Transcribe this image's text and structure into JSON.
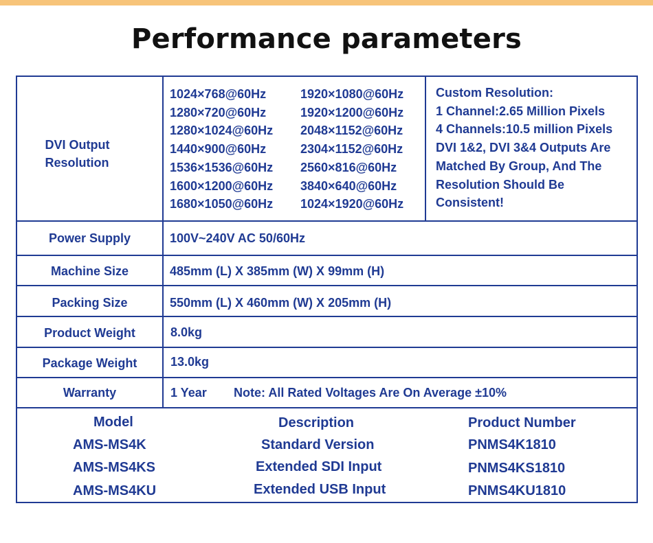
{
  "title": "Performance parameters",
  "dvi": {
    "label_line1": "DVI Output",
    "label_line2": "Resolution",
    "resolutions_col1": [
      "1024×768@60Hz",
      "1280×720@60Hz",
      "1280×1024@60Hz",
      "1440×900@60Hz",
      "1536×1536@60Hz",
      "1600×1200@60Hz",
      "1680×1050@60Hz"
    ],
    "resolutions_col2": [
      "1920×1080@60Hz",
      "1920×1200@60Hz",
      "2048×1152@60Hz",
      "2304×1152@60Hz",
      "2560×816@60Hz",
      "3840×640@60Hz",
      "1024×1920@60Hz"
    ],
    "custom_lines": [
      "Custom Resolution:",
      "1 Channel:2.65 Million Pixels",
      "4 Channels:10.5 million Pixels",
      "DVI 1&2, DVI 3&4 Outputs Are",
      "Matched By Group, And The",
      "Resolution Should Be",
      "Consistent!"
    ]
  },
  "rows": {
    "power": {
      "label": "Power Supply",
      "value": "100V~240V AC 50/60Hz"
    },
    "machine": {
      "label": "Machine Size",
      "value": "485mm (L) X 385mm (W) X 99mm (H)"
    },
    "packing": {
      "label": "Packing Size",
      "value": "550mm (L) X 460mm (W) X 205mm (H)"
    },
    "product_weight": {
      "label": "Product Weight",
      "value": "8.0kg"
    },
    "package_weight": {
      "label": "Package Weight",
      "value": "13.0kg"
    },
    "warranty": {
      "label": "Warranty",
      "value": "1 Year",
      "note": "Note: All Rated Voltages Are On Average ±10%"
    }
  },
  "models": {
    "headers": {
      "model": "Model",
      "description": "Description",
      "number": "Product Number"
    },
    "items": [
      {
        "model": "AMS-MS4K",
        "description": "Standard Version",
        "number": "PNMS4K1810"
      },
      {
        "model": "AMS-MS4KS",
        "description": "Extended SDI Input",
        "number": "PNMS4KS1810"
      },
      {
        "model": "AMS-MS4KU",
        "description": "Extended USB Input",
        "number": "PNMS4KU1810"
      }
    ]
  },
  "colors": {
    "accent": "#1f3a93",
    "top_bar": "#f7c47a",
    "title": "#111111"
  }
}
